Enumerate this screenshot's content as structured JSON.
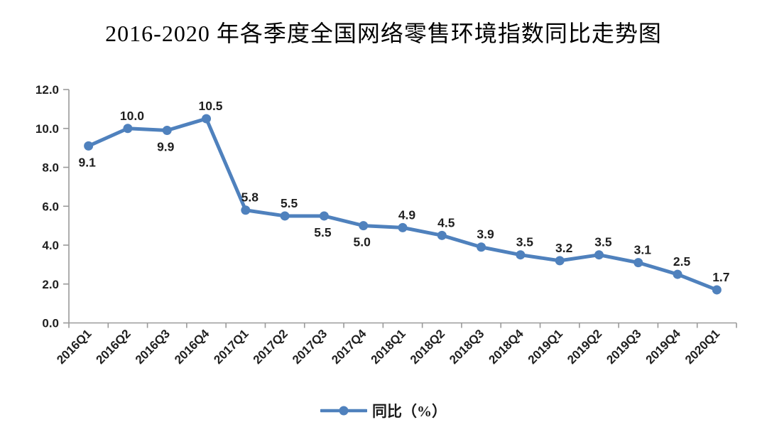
{
  "title": "2016-2020 年各季度全国网络零售环境指数同比走势图",
  "legend": {
    "label": "同比（%）"
  },
  "colors": {
    "line": "#4F81BD",
    "marker": "#4F81BD",
    "axis": "#9a9a9a",
    "label_text": "#1f1f1f"
  },
  "chart_data": {
    "type": "line",
    "title": "2016-2020 年各季度全国网络零售环境指数同比走势图",
    "categories": [
      "2016Q1",
      "2016Q2",
      "2016Q3",
      "2016Q4",
      "2017Q1",
      "2017Q2",
      "2017Q3",
      "2017Q4",
      "2018Q1",
      "2018Q2",
      "2018Q3",
      "2018Q4",
      "2019Q1",
      "2019Q2",
      "2019Q3",
      "2019Q4",
      "2020Q1"
    ],
    "series": [
      {
        "name": "同比（%）",
        "values": [
          9.1,
          10.0,
          9.9,
          10.5,
          5.8,
          5.5,
          5.5,
          5.0,
          4.9,
          4.5,
          3.9,
          3.5,
          3.2,
          3.5,
          3.1,
          2.5,
          1.7
        ]
      }
    ],
    "data_labels": [
      "9.1",
      "10.0",
      "9.9",
      "10.5",
      "5.8",
      "5.5",
      "5.5",
      "5.0",
      "4.9",
      "4.5",
      "3.9",
      "3.5",
      "3.2",
      "3.5",
      "3.1",
      "2.5",
      "1.7"
    ],
    "label_positions": [
      "below",
      "above",
      "below",
      "above",
      "above",
      "above",
      "below",
      "below",
      "above",
      "above",
      "above",
      "above",
      "above",
      "above",
      "above",
      "above",
      "above"
    ],
    "xlabel": "",
    "ylabel": "",
    "ylim": [
      0,
      12
    ],
    "ytick_labels": [
      "0.0",
      "2.0",
      "4.0",
      "6.0",
      "8.0",
      "10.0",
      "12.0"
    ],
    "grid": false,
    "legend_position": "bottom",
    "marker": "circle"
  }
}
